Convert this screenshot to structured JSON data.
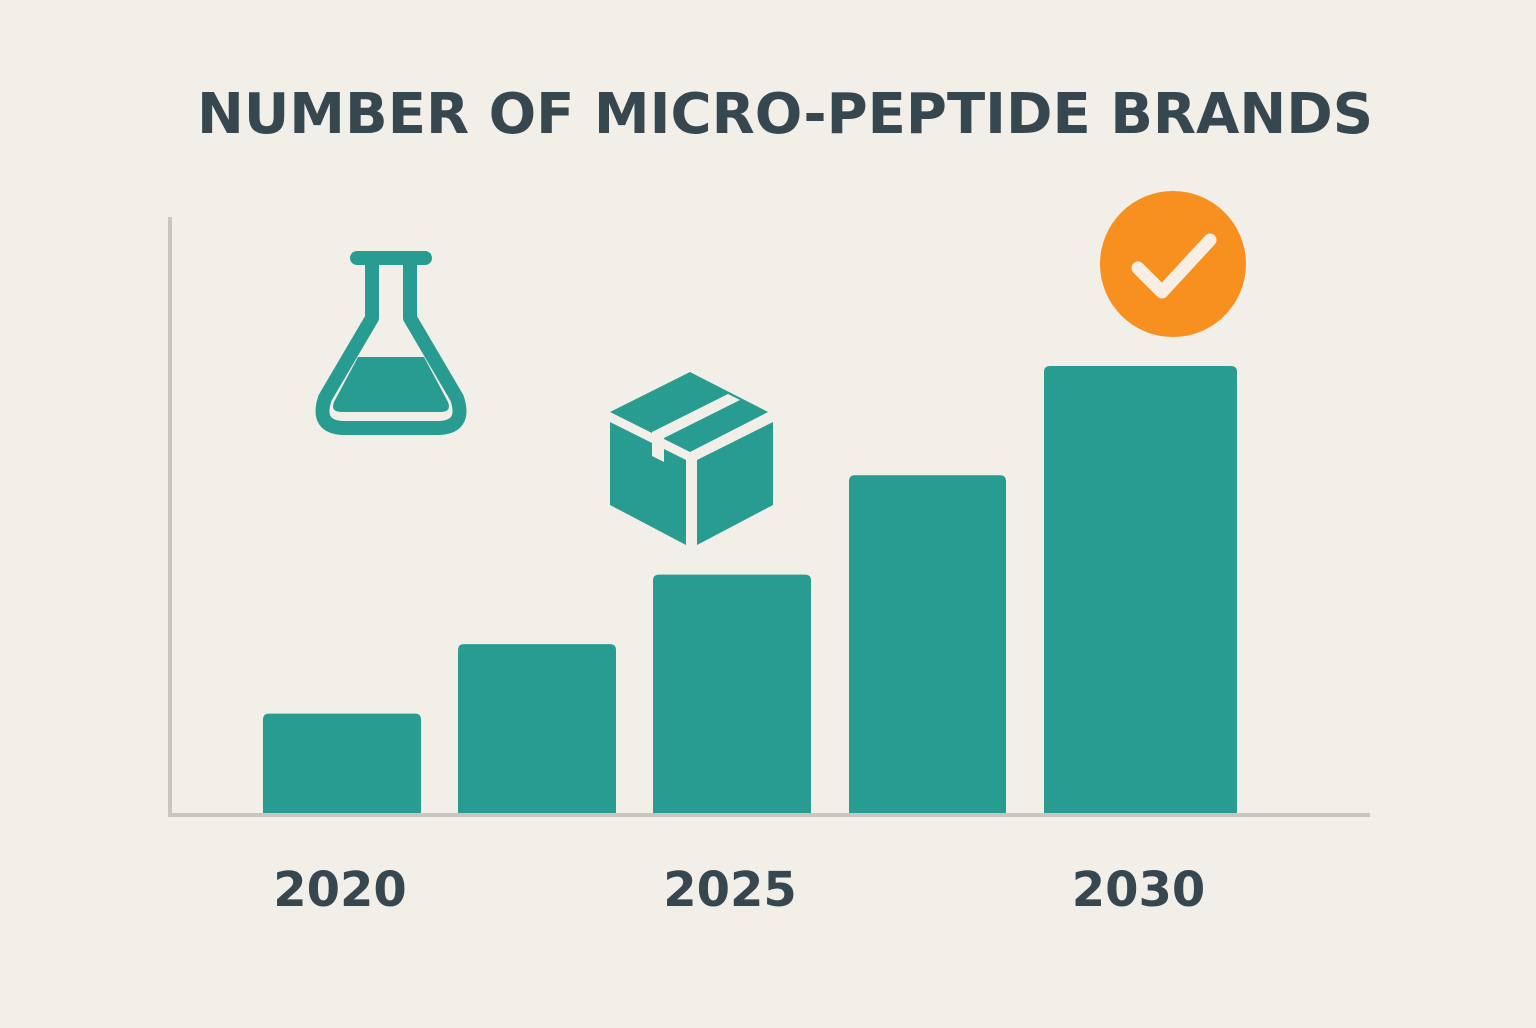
{
  "chart_data": {
    "type": "bar",
    "title": "NUMBER OF MICRO-PEPTIDE BRANDS",
    "categories": [
      "2020",
      null,
      "2025",
      null,
      "2030"
    ],
    "values": [
      10,
      17,
      24,
      34,
      45
    ],
    "color": "#289c91",
    "ylim": [
      0,
      60
    ]
  }
}
